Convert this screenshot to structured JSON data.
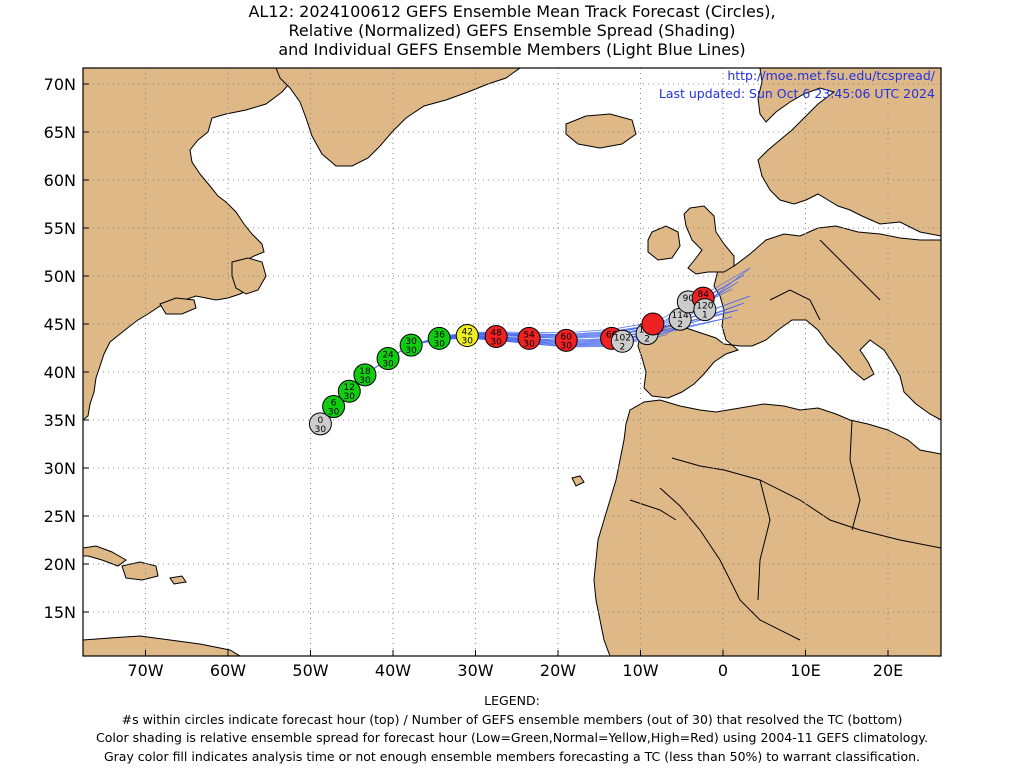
{
  "title": {
    "line1": "AL12: 2024100612 GEFS Ensemble Mean Track Forecast (Circles),",
    "line2": "Relative (Normalized) GEFS Ensemble Spread (Shading)",
    "line3": "and Individual GEFS Ensemble Members (Light Blue Lines)"
  },
  "header_info": {
    "url": "http://moe.met.fsu.edu/tcspread/",
    "updated": "Last updated: Sun Oct 6 23:45:06 UTC 2024"
  },
  "axes": {
    "lat_labels": [
      "70N",
      "65N",
      "60N",
      "55N",
      "50N",
      "45N",
      "40N",
      "35N",
      "30N",
      "25N",
      "20N",
      "15N"
    ],
    "lon_labels": [
      "70W",
      "60W",
      "50W",
      "40W",
      "30W",
      "20W",
      "10W",
      "0",
      "10E",
      "20E"
    ]
  },
  "colors": {
    "land": "#deb887",
    "ocean": "#ffffff",
    "member_tracks": "#4a6cf0",
    "low_spread": "#11cc11",
    "normal_spread": "#eeee22",
    "high_spread": "#ee2222",
    "gray_fill": "#cccccc",
    "url_text": "#2233dd"
  },
  "forecast_points": [
    {
      "hour": "0",
      "members": "30",
      "lon": -48.8,
      "lat": 34.6,
      "category": "gray"
    },
    {
      "hour": "6",
      "members": "30",
      "lon": -47.2,
      "lat": 36.4,
      "category": "green"
    },
    {
      "hour": "12",
      "members": "30",
      "lon": -45.3,
      "lat": 38.0,
      "category": "green"
    },
    {
      "hour": "18",
      "members": "30",
      "lon": -43.4,
      "lat": 39.7,
      "category": "green"
    },
    {
      "hour": "24",
      "members": "30",
      "lon": -40.6,
      "lat": 41.4,
      "category": "green"
    },
    {
      "hour": "30",
      "members": "30",
      "lon": -37.8,
      "lat": 42.8,
      "category": "green"
    },
    {
      "hour": "36",
      "members": "30",
      "lon": -34.4,
      "lat": 43.5,
      "category": "green"
    },
    {
      "hour": "42",
      "members": "30",
      "lon": -31.0,
      "lat": 43.8,
      "category": "yellow"
    },
    {
      "hour": "48",
      "members": "30",
      "lon": -27.5,
      "lat": 43.7,
      "category": "red"
    },
    {
      "hour": "54",
      "members": "30",
      "lon": -23.5,
      "lat": 43.5,
      "category": "red"
    },
    {
      "hour": "60",
      "members": "30",
      "lon": -19.0,
      "lat": 43.3,
      "category": "red"
    },
    {
      "hour": "66",
      "members": "",
      "lon": -13.5,
      "lat": 43.5,
      "category": "red"
    },
    {
      "hour": "102",
      "members": "2",
      "lon": -12.2,
      "lat": 43.2,
      "category": "gray"
    },
    {
      "hour": "108",
      "members": "2",
      "lon": -9.2,
      "lat": 44.0,
      "category": "gray"
    },
    {
      "hour": "",
      "members": "",
      "lon": -8.5,
      "lat": 45.0,
      "category": "red"
    },
    {
      "hour": "114",
      "members": "2",
      "lon": -5.2,
      "lat": 45.5,
      "category": "gray"
    },
    {
      "hour": "90",
      "members": "",
      "lon": -4.2,
      "lat": 47.3,
      "category": "gray"
    },
    {
      "hour": "84",
      "members": "",
      "lon": -2.4,
      "lat": 47.7,
      "category": "red"
    },
    {
      "hour": "120",
      "members": "1",
      "lon": -2.2,
      "lat": 46.5,
      "category": "gray"
    }
  ],
  "legend": {
    "heading": "LEGEND:",
    "line1": "#s within circles indicate forecast hour (top) / Number of GEFS ensemble members (out of 30) that resolved the TC (bottom)",
    "line2": "Color shading is relative ensemble spread for forecast hour (Low=Green,Normal=Yellow,High=Red) using 2004-11 GEFS climatology.",
    "line3": "Gray color fill indicates analysis time or not enough ensemble members forecasting a TC (less than 50%) to warrant classification."
  }
}
